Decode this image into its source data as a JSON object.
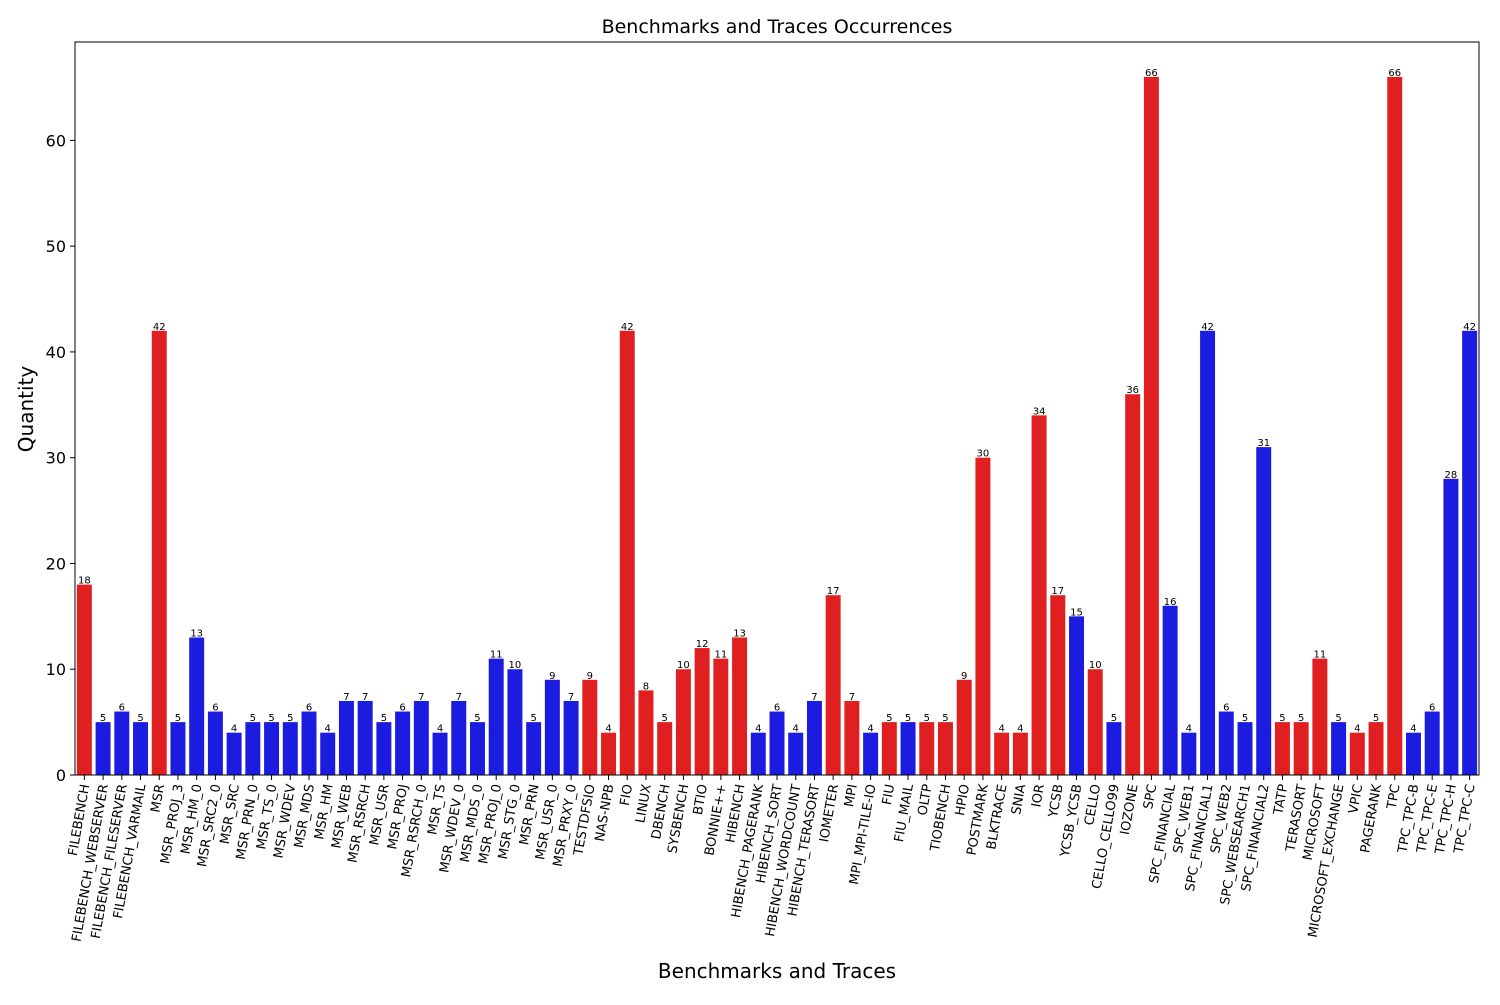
{
  "colors": {
    "red": "#e02020",
    "blue": "#1c1ce0"
  },
  "chart_data": {
    "type": "bar",
    "title": "Benchmarks and Traces Occurrences",
    "xlabel": "Benchmarks and Traces",
    "ylabel": "Quantity",
    "ylim": [
      0,
      69.3
    ],
    "yticks": [
      0,
      10,
      20,
      30,
      40,
      50,
      60
    ],
    "grid": false,
    "legend": "none",
    "categories": [
      "FILEBENCH",
      "FILEBENCH_WEBSERVER",
      "FILEBENCH_FILESERVER",
      "FILEBENCH_VARMAIL",
      "MSR",
      "MSR_PROJ_3",
      "MSR_HM_0",
      "MSR_SRC2_0",
      "MSR_SRC",
      "MSR_PRN_0",
      "MSR_TS_0",
      "MSR_WDEV",
      "MSR_MDS",
      "MSR_HM",
      "MSR_WEB",
      "MSR_RSRCH",
      "MSR_USR",
      "MSR_PROJ",
      "MSR_RSRCH_0",
      "MSR_TS",
      "MSR_WDEV_0",
      "MSR_MDS_0",
      "MSR_PROJ_0",
      "MSR_STG_0",
      "MSR_PRN",
      "MSR_USR_0",
      "MSR_PRXY_0",
      "TESTDFSIO",
      "NAS-NPB",
      "FIO",
      "LINUX",
      "DBENCH",
      "SYSBENCH",
      "BTIO",
      "BONNIE++",
      "HIBENCH",
      "HIBENCH_PAGERANK",
      "HIBENCH_SORT",
      "HIBENCH_WORDCOUNT",
      "HIBENCH_TERASORT",
      "IOMETER",
      "MPI",
      "MPI_MPI-TILE-IO",
      "FIU",
      "FIU_MAIL",
      "OLTP",
      "TIOBENCH",
      "HPIO",
      "POSTMARK",
      "BLKTRACE",
      "SNIA",
      "IOR",
      "YCSB",
      "YCSB_YCSB",
      "CELLO",
      "CELLO_CELLO99",
      "IOZONE",
      "SPC",
      "SPC_FINANCIAL",
      "SPC_WEB1",
      "SPC_FINANCIAL1",
      "SPC_WEB2",
      "SPC_WEBSEARCH1",
      "SPC_FINANCIAL2",
      "TATP",
      "TERASORT",
      "MICROSOFT",
      "MICROSOFT_EXCHANGE",
      "VPIC",
      "PAGERANK",
      "TPC",
      "TPC_TPC-B",
      "TPC_TPC-E",
      "TPC_TPC-H",
      "TPC_TPC-C"
    ],
    "values": [
      18,
      5,
      6,
      5,
      42,
      5,
      13,
      6,
      4,
      5,
      5,
      5,
      6,
      4,
      7,
      7,
      5,
      6,
      7,
      4,
      7,
      5,
      11,
      10,
      5,
      9,
      7,
      9,
      4,
      42,
      8,
      5,
      10,
      12,
      11,
      13,
      4,
      6,
      4,
      7,
      17,
      7,
      4,
      5,
      5,
      5,
      5,
      9,
      30,
      4,
      4,
      34,
      17,
      15,
      10,
      5,
      36,
      66,
      16,
      4,
      42,
      6,
      5,
      31,
      5,
      5,
      11,
      5,
      4,
      5,
      66,
      4,
      6,
      28,
      42
    ],
    "bar_colors": [
      "red",
      "blue",
      "blue",
      "blue",
      "red",
      "blue",
      "blue",
      "blue",
      "blue",
      "blue",
      "blue",
      "blue",
      "blue",
      "blue",
      "blue",
      "blue",
      "blue",
      "blue",
      "blue",
      "blue",
      "blue",
      "blue",
      "blue",
      "blue",
      "blue",
      "blue",
      "blue",
      "red",
      "red",
      "red",
      "red",
      "red",
      "red",
      "red",
      "red",
      "red",
      "blue",
      "blue",
      "blue",
      "blue",
      "red",
      "red",
      "blue",
      "red",
      "blue",
      "red",
      "red",
      "red",
      "red",
      "red",
      "red",
      "red",
      "red",
      "blue",
      "red",
      "blue",
      "red",
      "red",
      "blue",
      "blue",
      "blue",
      "blue",
      "blue",
      "blue",
      "red",
      "red",
      "red",
      "blue",
      "red",
      "red",
      "red",
      "blue",
      "blue",
      "blue",
      "blue"
    ]
  }
}
